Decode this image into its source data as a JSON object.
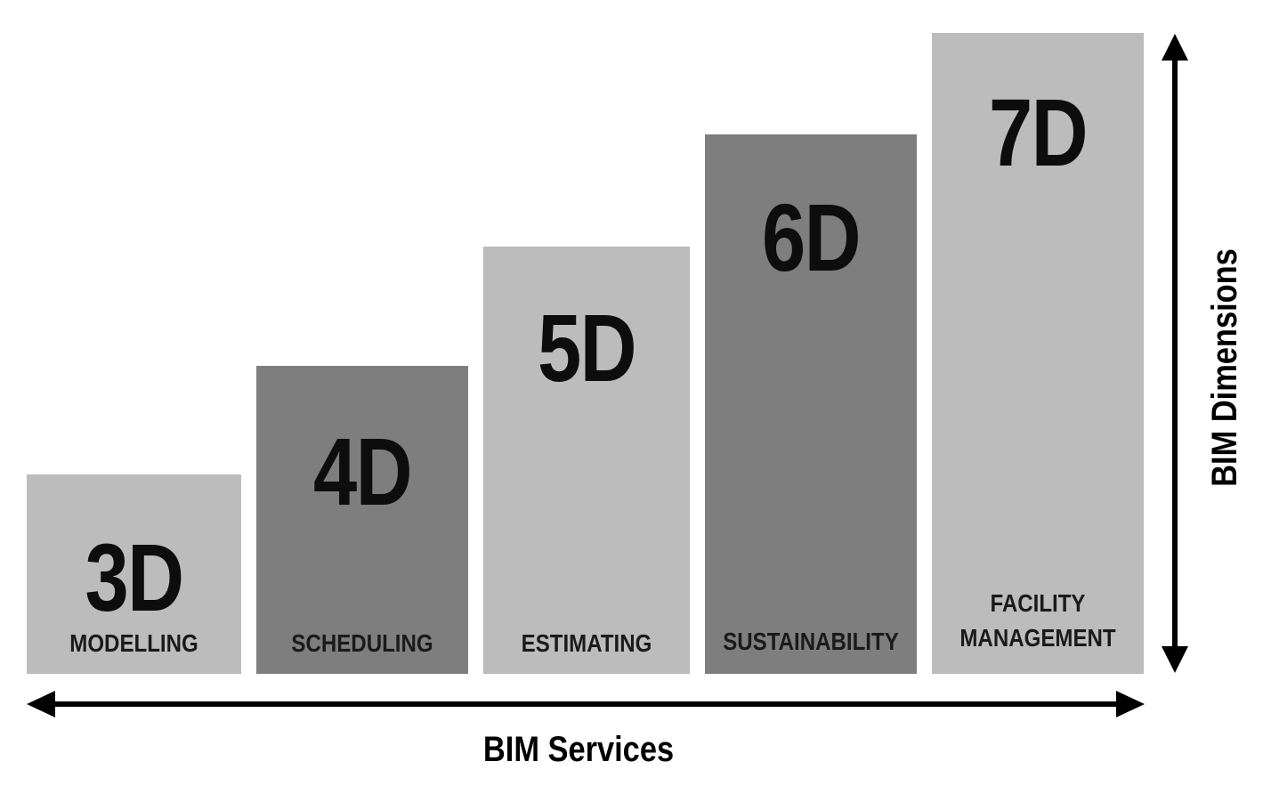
{
  "diagram": {
    "blocks": [
      {
        "id": "3d",
        "number": "3D",
        "label_lines": [
          "MODELLING"
        ],
        "shade": "light"
      },
      {
        "id": "4d",
        "number": "4D",
        "label_lines": [
          "SCHEDULING"
        ],
        "shade": "dark"
      },
      {
        "id": "5d",
        "number": "5D",
        "label_lines": [
          "ESTIMATING"
        ],
        "shade": "light"
      },
      {
        "id": "6d",
        "number": "6D",
        "label_lines": [
          "SUSTAINABILITY"
        ],
        "shade": "dark"
      },
      {
        "id": "7d",
        "number": "7D",
        "label_lines": [
          "FACILITY",
          "MANAGEMENT"
        ],
        "shade": "light"
      }
    ],
    "x_axis_title": "BIM Services",
    "y_axis_title": "BIM Dimensions",
    "colors": {
      "light": "#bcbcbc",
      "dark": "#7e7e7e",
      "ink": "#000000"
    }
  }
}
